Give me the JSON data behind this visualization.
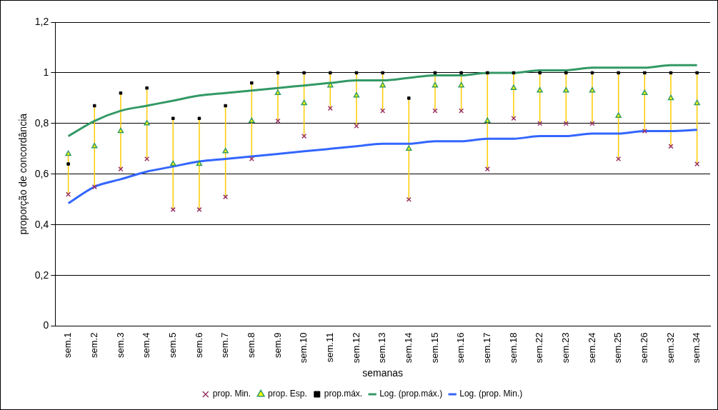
{
  "chart_data": {
    "type": "scatter",
    "xlabel": "semanas",
    "ylabel": "proporção de concordância",
    "categories": [
      "sem.1",
      "sem.2",
      "sem.3",
      "sem.4",
      "sem.5",
      "sem.6",
      "sem.7",
      "sem.8",
      "sem.9",
      "sem.10",
      "sem.11",
      "sem.12",
      "sem.13",
      "sem.14",
      "sem.15",
      "sem.16",
      "sem.17",
      "sem.18",
      "sem.22",
      "sem.23",
      "sem.24",
      "sem.25",
      "sem.26",
      "sem.32",
      "sem.34"
    ],
    "series": [
      {
        "name": "prop. Min.",
        "marker": "cross",
        "color": "#993366",
        "values": [
          0.52,
          0.55,
          0.62,
          0.66,
          0.46,
          0.46,
          0.51,
          0.66,
          0.81,
          0.75,
          0.86,
          0.79,
          0.85,
          0.5,
          0.85,
          0.85,
          0.62,
          0.82,
          0.8,
          0.8,
          0.8,
          0.66,
          0.77,
          0.71,
          0.64
        ]
      },
      {
        "name": "prop. Esp.",
        "marker": "triangle",
        "color": "#339966",
        "values": [
          0.68,
          0.71,
          0.77,
          0.8,
          0.64,
          0.64,
          0.69,
          0.81,
          0.92,
          0.88,
          0.95,
          0.91,
          0.95,
          0.7,
          0.95,
          0.95,
          0.81,
          0.94,
          0.93,
          0.93,
          0.93,
          0.83,
          0.92,
          0.9,
          0.88
        ]
      },
      {
        "name": "prop.máx.",
        "marker": "square",
        "color": "#000000",
        "values": [
          0.64,
          0.87,
          0.92,
          0.94,
          0.82,
          0.82,
          0.87,
          0.96,
          1,
          1,
          1,
          1,
          1,
          0.9,
          1,
          1,
          1,
          1,
          1,
          1,
          1,
          1,
          1,
          1,
          1
        ]
      },
      {
        "name": "Log. (prop.máx.)",
        "type": "line",
        "marker": "none",
        "color": "#339966",
        "values": [
          0.75,
          0.81,
          0.85,
          0.87,
          0.89,
          0.91,
          0.92,
          0.93,
          0.94,
          0.95,
          0.96,
          0.97,
          0.97,
          0.98,
          0.99,
          0.99,
          1.0,
          1.0,
          1.01,
          1.01,
          1.02,
          1.02,
          1.02,
          1.03,
          1.03
        ]
      },
      {
        "name": "Log. (prop. Min.)",
        "type": "line",
        "marker": "none",
        "color": "#3366ff",
        "values": [
          0.485,
          0.55,
          0.58,
          0.61,
          0.63,
          0.65,
          0.66,
          0.67,
          0.68,
          0.69,
          0.7,
          0.71,
          0.72,
          0.72,
          0.73,
          0.73,
          0.74,
          0.74,
          0.75,
          0.75,
          0.76,
          0.76,
          0.77,
          0.77,
          0.775
        ]
      }
    ],
    "ylim": [
      0,
      1.2
    ],
    "yticks": [
      {
        "value": 0,
        "label": "0"
      },
      {
        "value": 0.2,
        "label": "0,2"
      },
      {
        "value": 0.4,
        "label": "0,4"
      },
      {
        "value": 0.6,
        "label": "0,6"
      },
      {
        "value": 0.8,
        "label": "0,8"
      },
      {
        "value": 1,
        "label": "1"
      },
      {
        "value": 1.2,
        "label": "1,2"
      }
    ],
    "grid": "y",
    "legend": "bottom"
  }
}
